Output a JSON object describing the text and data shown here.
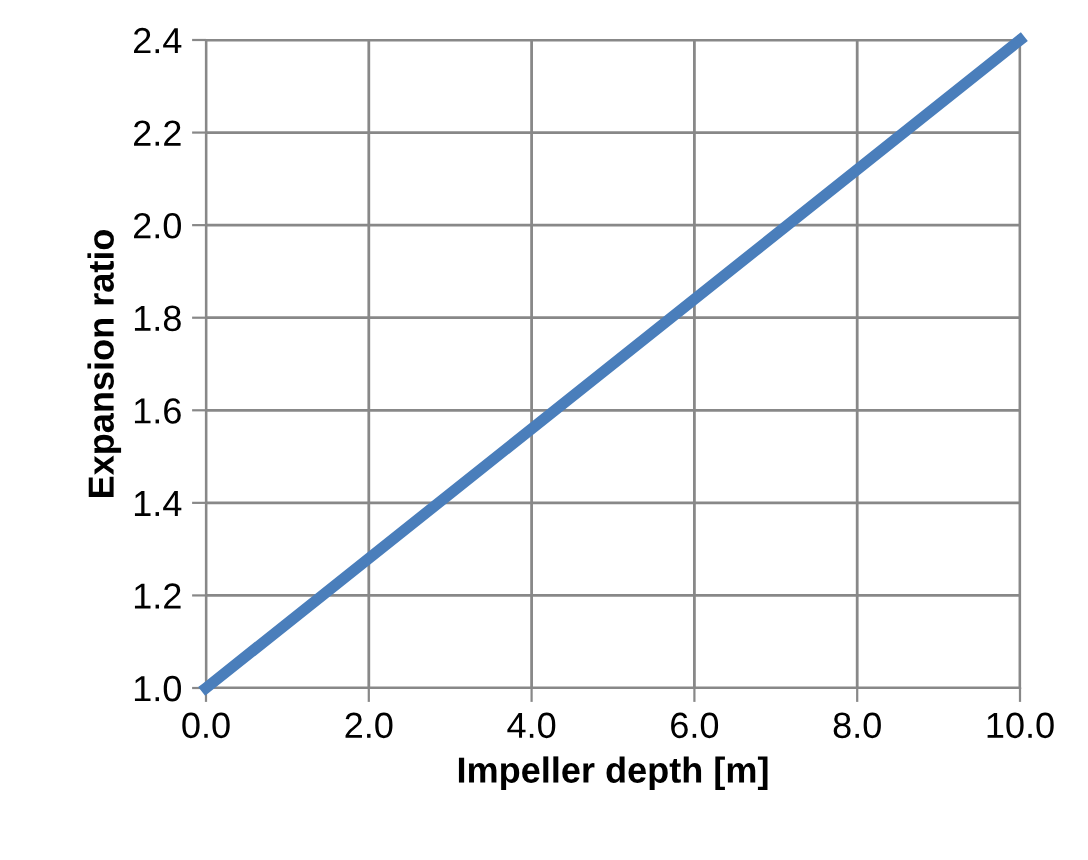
{
  "chart_data": {
    "type": "line",
    "xlabel": "Impeller depth [m]",
    "ylabel": "Expansion ratio",
    "x": [
      0.0,
      10.0
    ],
    "series": [
      {
        "color": "#4a7ebb",
        "values": [
          1.0,
          2.4
        ]
      }
    ],
    "xlim": [
      0.0,
      10.0
    ],
    "xticks": [
      {
        "value": 0,
        "label": "0.0"
      },
      {
        "value": 2,
        "label": "2.0"
      },
      {
        "value": 4,
        "label": "4.0"
      },
      {
        "value": 6,
        "label": "6.0"
      },
      {
        "value": 8,
        "label": "8.0"
      },
      {
        "value": 10,
        "label": "10.0"
      }
    ],
    "ylim": [
      1.0,
      2.4
    ],
    "yticks": [
      {
        "value": 1.0,
        "label": "1.0"
      },
      {
        "value": 1.2,
        "label": "1.2"
      },
      {
        "value": 1.4,
        "label": "1.4"
      },
      {
        "value": 1.6,
        "label": "1.6"
      },
      {
        "value": 1.8,
        "label": "1.8"
      },
      {
        "value": 2.0,
        "label": "2.0"
      },
      {
        "value": 2.2,
        "label": "2.2"
      },
      {
        "value": 2.4,
        "label": "2.4"
      }
    ],
    "grid": true,
    "marker": "none",
    "line_style": "solid"
  }
}
